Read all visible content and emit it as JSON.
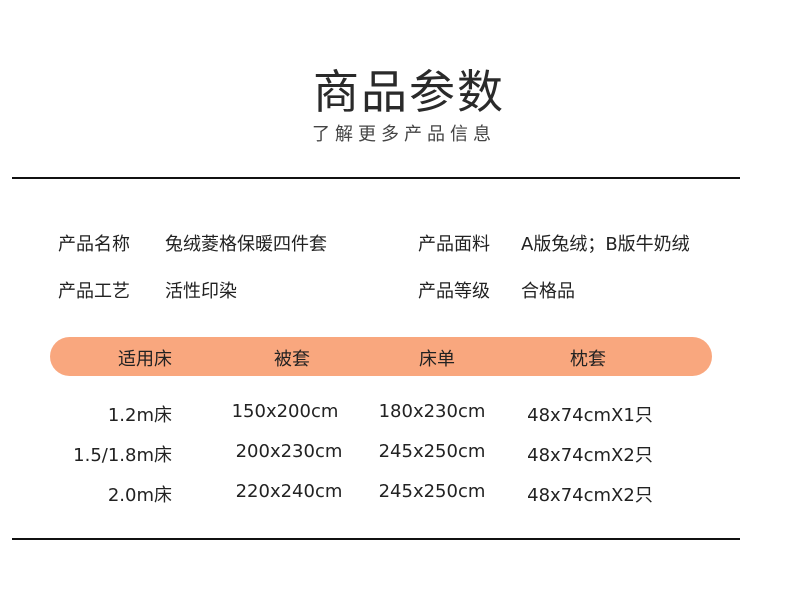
{
  "header": {
    "title": "商品参数",
    "subtitle": "了解更多产品信息"
  },
  "params": [
    {
      "label": "产品名称",
      "value": "兔绒菱格保暖四件套"
    },
    {
      "label": "产品面料",
      "value": "A版兔绒；B版牛奶绒"
    },
    {
      "label": "产品工艺",
      "value": "活性印染"
    },
    {
      "label": "产品等级",
      "value": "合格品"
    }
  ],
  "table": {
    "header_color": "#F9A77E",
    "columns": [
      "适用床",
      "被套",
      "床单",
      "枕套"
    ],
    "rows": [
      [
        "1.2m床",
        "150x200cm",
        "180x230cm",
        "48x74cmX1只"
      ],
      [
        "1.5/1.8m床",
        "200x230cm",
        "245x250cm",
        "48x74cmX2只"
      ],
      [
        "2.0m床",
        "220x240cm",
        "245x250cm",
        "48x74cmX2只"
      ]
    ]
  }
}
